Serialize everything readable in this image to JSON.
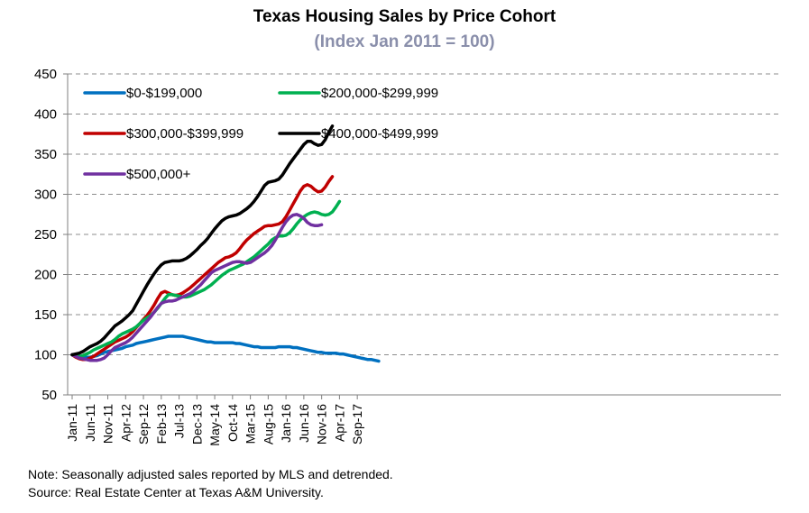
{
  "chart_data": {
    "type": "line",
    "title": "Texas Housing Sales by Price Cohort",
    "subtitle": "(Index Jan 2011 = 100)",
    "xlabel": "",
    "ylabel": "",
    "ylim": [
      50,
      450
    ],
    "yticks": [
      50,
      100,
      150,
      200,
      250,
      300,
      350,
      400,
      450
    ],
    "grid": true,
    "legend_position": "top-left",
    "x_start": "Jan 2011",
    "x_end": "Dec 2017",
    "frequency": "monthly",
    "xtick_labels": [
      "Jan-11",
      "Jun-11",
      "Nov-11",
      "Apr-12",
      "Sep-12",
      "Feb-13",
      "Jul-13",
      "Dec-13",
      "May-14",
      "Oct-14",
      "Mar-15",
      "Aug-15",
      "Jan-16",
      "Jun-16",
      "Nov-16",
      "Apr-17",
      "Sep-17"
    ],
    "series": [
      {
        "name": "$0-$199,000",
        "color": "#0070c0",
        "values": [
          100,
          99,
          98,
          97,
          97,
          97,
          98,
          99,
          101,
          103,
          104,
          105,
          106,
          107,
          108,
          110,
          111,
          112,
          114,
          115,
          116,
          117,
          118,
          119,
          120,
          121,
          122,
          123,
          123,
          123,
          123,
          123,
          122,
          121,
          120,
          119,
          118,
          117,
          116,
          116,
          115,
          115,
          115,
          115,
          115,
          115,
          114,
          114,
          113,
          112,
          111,
          110,
          110,
          109,
          109,
          109,
          109,
          109,
          110,
          110,
          110,
          110,
          109,
          109,
          108,
          107,
          106,
          105,
          104,
          103,
          103,
          102,
          102,
          102,
          102,
          101,
          101,
          100,
          99,
          98,
          97,
          96,
          95,
          94,
          94,
          93,
          92
        ]
      },
      {
        "name": "$200,000-$299,999",
        "color": "#00b050",
        "values": [
          100,
          99,
          98,
          99,
          101,
          103,
          106,
          108,
          110,
          112,
          114,
          116,
          119,
          123,
          126,
          128,
          130,
          132,
          135,
          139,
          143,
          146,
          149,
          153,
          158,
          164,
          170,
          175,
          175,
          174,
          173,
          172,
          172,
          173,
          175,
          177,
          179,
          181,
          184,
          187,
          191,
          195,
          199,
          202,
          205,
          207,
          209,
          211,
          213,
          216,
          219,
          222,
          226,
          230,
          234,
          238,
          243,
          246,
          248,
          248,
          249,
          252,
          257,
          263,
          268,
          272,
          275,
          277,
          278,
          277,
          275,
          274,
          275,
          278,
          284,
          291
        ]
      },
      {
        "name": "$300,000-$399,999",
        "color": "#c00000",
        "values": [
          100,
          97,
          95,
          94,
          94,
          96,
          98,
          101,
          104,
          107,
          110,
          113,
          116,
          118,
          120,
          122,
          125,
          129,
          134,
          139,
          144,
          149,
          155,
          162,
          170,
          177,
          179,
          177,
          175,
          174,
          175,
          177,
          180,
          183,
          187,
          191,
          195,
          199,
          203,
          207,
          211,
          215,
          218,
          221,
          222,
          224,
          227,
          232,
          238,
          243,
          247,
          251,
          254,
          257,
          260,
          261,
          261,
          262,
          263,
          266,
          272,
          280,
          288,
          296,
          304,
          310,
          312,
          310,
          306,
          303,
          304,
          309,
          316,
          322
        ]
      },
      {
        "name": "$400,000-$499,999",
        "color": "#000000",
        "values": [
          100,
          101,
          102,
          104,
          107,
          110,
          112,
          114,
          117,
          121,
          126,
          131,
          136,
          139,
          142,
          146,
          150,
          155,
          163,
          171,
          179,
          187,
          194,
          201,
          207,
          212,
          215,
          216,
          217,
          217,
          217,
          218,
          220,
          223,
          227,
          231,
          236,
          240,
          245,
          251,
          257,
          262,
          267,
          270,
          272,
          273,
          274,
          276,
          279,
          282,
          286,
          291,
          297,
          304,
          311,
          315,
          316,
          317,
          319,
          324,
          331,
          338,
          344,
          350,
          356,
          362,
          366,
          366,
          363,
          361,
          362,
          368,
          377,
          385
        ]
      },
      {
        "name": "$500,000+",
        "color": "#7030a0",
        "values": [
          100,
          98,
          96,
          95,
          94,
          93,
          93,
          93,
          94,
          96,
          100,
          105,
          109,
          111,
          113,
          115,
          118,
          122,
          127,
          132,
          137,
          142,
          147,
          153,
          159,
          164,
          166,
          167,
          167,
          168,
          170,
          172,
          174,
          176,
          179,
          183,
          187,
          192,
          197,
          202,
          205,
          207,
          209,
          211,
          213,
          215,
          216,
          216,
          215,
          214,
          215,
          218,
          221,
          224,
          227,
          231,
          236,
          243,
          251,
          259,
          266,
          271,
          274,
          275,
          273,
          270,
          265,
          262,
          261,
          261,
          262
        ]
      }
    ]
  },
  "notes": {
    "line1": "Note: Seasonally adjusted sales reported by MLS and detrended.",
    "line2": "Source: Real Estate Center at Texas A&M University."
  }
}
